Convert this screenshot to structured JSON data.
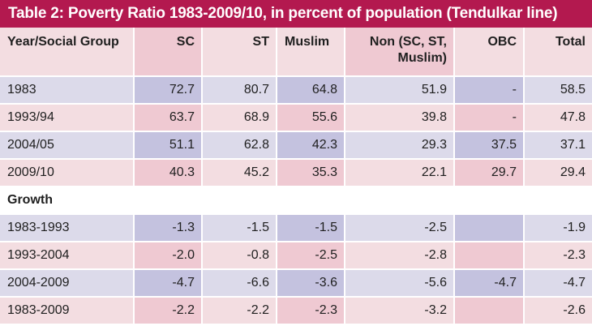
{
  "title": "Table 2: Poverty Ratio 1983-2009/10, in percent of population (Tendulkar line)",
  "columns": [
    "Year/Social Group",
    "SC",
    "ST",
    "Muslim",
    "Non (SC, ST, Muslim)",
    "OBC",
    "Total"
  ],
  "rows": [
    {
      "label": "1983",
      "values": [
        "72.7",
        "80.7",
        "64.8",
        "51.9",
        "-",
        "58.5"
      ]
    },
    {
      "label": "1993/94",
      "values": [
        "63.7",
        "68.9",
        "55.6",
        "39.8",
        "-",
        "47.8"
      ]
    },
    {
      "label": "2004/05",
      "values": [
        "51.1",
        "62.8",
        "42.3",
        "29.3",
        "37.5",
        "37.1"
      ]
    },
    {
      "label": "2009/10",
      "values": [
        "40.3",
        "45.2",
        "35.3",
        "22.1",
        "29.7",
        "29.4"
      ]
    }
  ],
  "growth_heading": "Growth",
  "growth_rows": [
    {
      "label": "1983-1993",
      "values": [
        "-1.3",
        "-1.5",
        "-1.5",
        "-2.5",
        "",
        "-1.9"
      ]
    },
    {
      "label": "1993-2004",
      "values": [
        "-2.0",
        "-0.8",
        "-2.5",
        "-2.8",
        "",
        "-2.3"
      ]
    },
    {
      "label": "2004-2009",
      "values": [
        "-4.7",
        "-6.6",
        "-3.6",
        "-5.6",
        "-4.7",
        "-4.7"
      ]
    },
    {
      "label": "1983-2009",
      "values": [
        "-2.2",
        "-2.2",
        "-2.3",
        "-3.2",
        "",
        "-2.6"
      ]
    }
  ]
}
